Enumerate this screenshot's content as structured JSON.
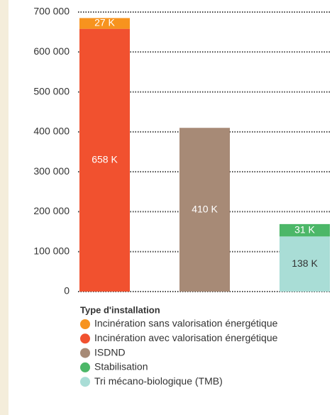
{
  "chart_data": {
    "type": "stacked_bar",
    "categories": [
      null,
      null,
      null
    ],
    "series": [
      {
        "name": "Incinération sans valorisation énergétique",
        "color": "#f7931e",
        "values": [
          27000,
          null,
          null
        ],
        "value_labels": [
          "27 K",
          null,
          null
        ]
      },
      {
        "name": "Incinération avec valorisation énergétique",
        "color": "#f1512f",
        "values": [
          658000,
          null,
          null
        ],
        "value_labels": [
          "658 K",
          null,
          null
        ]
      },
      {
        "name": "ISDND",
        "color": "#a78a76",
        "values": [
          null,
          410000,
          null
        ],
        "value_labels": [
          null,
          "410 K",
          null
        ]
      },
      {
        "name": "Stabilisation",
        "color": "#4cb768",
        "values": [
          null,
          null,
          31000
        ],
        "value_labels": [
          null,
          null,
          "31 K"
        ]
      },
      {
        "name": "Tri mécano-biologique (TMB)",
        "color": "#a9ddd6",
        "values": [
          null,
          null,
          138000
        ],
        "value_labels": [
          null,
          null,
          "138 K"
        ]
      }
    ],
    "legend_title": "Type d'installation",
    "ylim": [
      0,
      700000
    ],
    "yticks": [
      0,
      {
        "value": 100000,
        "label": "100 000"
      },
      {
        "value": 200000,
        "label": "200 000"
      },
      {
        "value": 300000,
        "label": "300 000"
      },
      {
        "value": 400000,
        "label": "400 000"
      },
      {
        "value": 500000,
        "label": "500 000"
      },
      {
        "value": 600000,
        "label": "600 000"
      },
      {
        "value": 700000,
        "label": "700 000"
      }
    ],
    "grid": true,
    "legend": "bottom"
  }
}
